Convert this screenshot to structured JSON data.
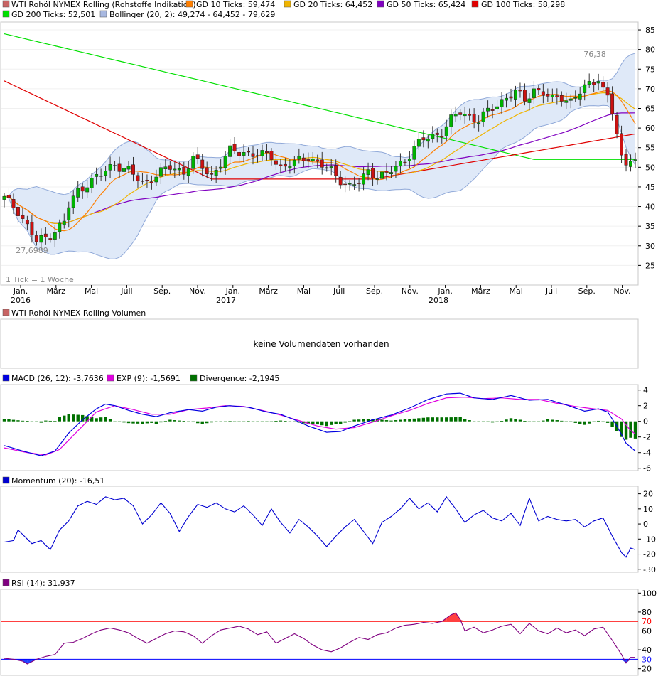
{
  "colors": {
    "bullish": "#00b400",
    "bearish": "#cc1111",
    "gd10": "#ff7f00",
    "gd20": "#f0b400",
    "gd50": "#8000c0",
    "gd100": "#e00000",
    "gd200": "#00e000",
    "bollinger_fill": "#dfe9f8",
    "bollinger_line": "#8fa8d8",
    "macd": "#0000e0",
    "signal": "#e000e0",
    "divergence": "#007000",
    "momentum": "#0000d0",
    "rsi": "#800080",
    "rsi70": "#ff0000",
    "rsi30": "#0000ff",
    "rsi_fill_hi": "#ff4040",
    "rsi_fill_lo": "#2040ff"
  },
  "price_panel": {
    "legend": [
      {
        "label": "WTI Rohöl NYMEX Rolling (Rohstoffe Indikation)",
        "color": "#c86464"
      },
      {
        "label": "GD 10 Ticks: 59,474",
        "color": "#ff7f00"
      },
      {
        "label": "GD 20 Ticks: 64,452",
        "color": "#f0b400"
      },
      {
        "label": "GD 50 Ticks: 65,424",
        "color": "#8000c0"
      },
      {
        "label": "GD 100 Ticks: 58,298",
        "color": "#e00000"
      },
      {
        "label": "GD 200 Ticks: 52,501",
        "color": "#00e000"
      },
      {
        "label": "Bollinger (20, 2): 49,274 - 64,452 - 79,629",
        "color": "#a8b8e0"
      }
    ],
    "max_label": "76,38",
    "min_label": "27,6989",
    "tick_note": "1 Tick = 1 Woche",
    "y_ticks": [
      "85",
      "80",
      "75",
      "70",
      "65",
      "60",
      "55",
      "50",
      "45",
      "40",
      "35",
      "30",
      "25"
    ],
    "x_months": [
      "Jan.",
      "März",
      "Mai",
      "Juli",
      "Sep.",
      "Nov.",
      "Jan.",
      "März",
      "Mai",
      "Juli",
      "Sep.",
      "Nov.",
      "Jan.",
      "März",
      "Mai",
      "Juli",
      "Sep.",
      "Nov."
    ],
    "x_years": [
      "2016",
      "2017",
      "2018"
    ]
  },
  "volume_panel": {
    "legend": "WTI Rohöl NYMEX Rolling Volumen",
    "message": "keine Volumendaten vorhanden"
  },
  "macd_panel": {
    "legend": [
      {
        "label": "MACD (26, 12): -3,7636",
        "color": "#0000e0"
      },
      {
        "label": "EXP (9): -1,5691",
        "color": "#e000e0"
      },
      {
        "label": "Divergence: -2,1945",
        "color": "#007000"
      }
    ],
    "y_ticks": [
      "4",
      "2",
      "0",
      "-2",
      "-4",
      "-6"
    ]
  },
  "momentum_panel": {
    "legend": [
      {
        "label": "Momentum (20): -16,51",
        "color": "#0000d0"
      }
    ],
    "y_ticks": [
      "20",
      "10",
      "0",
      "-10",
      "-20",
      "-30"
    ]
  },
  "rsi_panel": {
    "legend": [
      {
        "label": "RSI (14): 31,937",
        "color": "#800080"
      }
    ],
    "y_ticks": [
      "100",
      "80",
      "60",
      "40",
      "20"
    ],
    "ref_labels": [
      "70",
      "30"
    ]
  },
  "chart_data": {
    "type": "candlestick",
    "ylim": [
      20,
      87
    ],
    "price_anchors": [
      [
        0,
        42
      ],
      [
        3,
        39
      ],
      [
        5,
        35
      ],
      [
        7,
        31
      ],
      [
        9,
        32
      ],
      [
        11,
        34
      ],
      [
        13,
        36
      ],
      [
        14,
        40
      ],
      [
        16,
        44
      ],
      [
        18,
        46
      ],
      [
        21,
        48
      ],
      [
        24,
        51
      ],
      [
        27,
        49
      ],
      [
        30,
        46
      ],
      [
        33,
        48
      ],
      [
        36,
        50
      ],
      [
        39,
        49
      ],
      [
        41,
        52
      ],
      [
        43,
        50
      ],
      [
        45,
        48
      ],
      [
        47,
        51
      ],
      [
        49,
        54
      ],
      [
        52,
        54
      ],
      [
        55,
        53
      ],
      [
        58,
        53
      ],
      [
        60,
        50
      ],
      [
        63,
        51
      ],
      [
        66,
        53
      ],
      [
        68,
        51
      ],
      [
        71,
        49
      ],
      [
        73,
        47
      ],
      [
        75,
        45
      ],
      [
        77,
        46
      ],
      [
        79,
        49
      ],
      [
        81,
        48
      ],
      [
        83,
        48
      ],
      [
        85,
        50
      ],
      [
        87,
        52
      ],
      [
        89,
        55
      ],
      [
        91,
        57
      ],
      [
        93,
        58
      ],
      [
        95,
        59
      ],
      [
        97,
        62
      ],
      [
        99,
        64
      ],
      [
        101,
        63
      ],
      [
        103,
        62
      ],
      [
        105,
        64
      ],
      [
        107,
        66
      ],
      [
        109,
        68
      ],
      [
        111,
        69
      ],
      [
        113,
        67
      ],
      [
        115,
        70
      ],
      [
        117,
        69
      ],
      [
        119,
        67
      ],
      [
        121,
        68
      ],
      [
        123,
        67
      ],
      [
        125,
        69
      ],
      [
        127,
        71
      ],
      [
        129,
        73
      ],
      [
        130,
        70
      ],
      [
        131,
        68
      ],
      [
        132,
        64
      ],
      [
        133,
        58
      ],
      [
        134,
        52
      ],
      [
        135,
        51
      ],
      [
        136,
        53
      ],
      [
        137,
        52
      ]
    ],
    "macd_anchors": [
      [
        0,
        -3.1
      ],
      [
        4,
        -3.8
      ],
      [
        8,
        -4.4
      ],
      [
        11,
        -3.8
      ],
      [
        14,
        -1.5
      ],
      [
        17,
        0.2
      ],
      [
        20,
        1.6
      ],
      [
        22,
        2.2
      ],
      [
        24,
        2.0
      ],
      [
        27,
        1.4
      ],
      [
        30,
        0.9
      ],
      [
        33,
        0.6
      ],
      [
        36,
        1.1
      ],
      [
        40,
        1.5
      ],
      [
        43,
        1.3
      ],
      [
        46,
        1.8
      ],
      [
        49,
        2.0
      ],
      [
        53,
        1.8
      ],
      [
        57,
        1.2
      ],
      [
        60,
        0.9
      ],
      [
        63,
        0.2
      ],
      [
        66,
        -0.6
      ],
      [
        70,
        -1.4
      ],
      [
        73,
        -1.3
      ],
      [
        76,
        -0.6
      ],
      [
        80,
        0.2
      ],
      [
        84,
        0.8
      ],
      [
        88,
        1.7
      ],
      [
        92,
        2.8
      ],
      [
        96,
        3.5
      ],
      [
        99,
        3.6
      ],
      [
        102,
        3.0
      ],
      [
        106,
        2.8
      ],
      [
        110,
        3.3
      ],
      [
        114,
        2.7
      ],
      [
        118,
        2.8
      ],
      [
        122,
        2.1
      ],
      [
        126,
        1.3
      ],
      [
        129,
        1.6
      ],
      [
        131,
        1.2
      ],
      [
        133,
        -0.6
      ],
      [
        135,
        -2.8
      ],
      [
        137,
        -3.8
      ]
    ],
    "signal_anchors": [
      [
        0,
        -3.4
      ],
      [
        5,
        -4.0
      ],
      [
        9,
        -4.3
      ],
      [
        12,
        -3.6
      ],
      [
        16,
        -1.2
      ],
      [
        20,
        1.2
      ],
      [
        24,
        2.0
      ],
      [
        28,
        1.5
      ],
      [
        32,
        0.9
      ],
      [
        36,
        0.9
      ],
      [
        40,
        1.5
      ],
      [
        44,
        1.7
      ],
      [
        48,
        2.0
      ],
      [
        52,
        1.9
      ],
      [
        56,
        1.4
      ],
      [
        60,
        0.8
      ],
      [
        64,
        0.1
      ],
      [
        68,
        -0.6
      ],
      [
        72,
        -1.0
      ],
      [
        76,
        -0.8
      ],
      [
        80,
        -0.1
      ],
      [
        84,
        0.7
      ],
      [
        88,
        1.4
      ],
      [
        92,
        2.3
      ],
      [
        96,
        3.0
      ],
      [
        100,
        3.1
      ],
      [
        104,
        2.9
      ],
      [
        108,
        3.0
      ],
      [
        112,
        2.8
      ],
      [
        116,
        2.8
      ],
      [
        120,
        2.3
      ],
      [
        124,
        1.9
      ],
      [
        128,
        1.6
      ],
      [
        131,
        1.4
      ],
      [
        134,
        0.3
      ],
      [
        136,
        -1.2
      ],
      [
        137,
        -1.6
      ]
    ],
    "momentum_anchors": [
      [
        0,
        -12
      ],
      [
        2,
        -11
      ],
      [
        3,
        -4
      ],
      [
        5,
        -10
      ],
      [
        6,
        -13
      ],
      [
        8,
        -11
      ],
      [
        10,
        -17
      ],
      [
        12,
        -4
      ],
      [
        14,
        2
      ],
      [
        16,
        12
      ],
      [
        18,
        15
      ],
      [
        20,
        13
      ],
      [
        22,
        18
      ],
      [
        24,
        16
      ],
      [
        26,
        17
      ],
      [
        28,
        12
      ],
      [
        30,
        0
      ],
      [
        32,
        6
      ],
      [
        34,
        14
      ],
      [
        36,
        7
      ],
      [
        38,
        -5
      ],
      [
        40,
        5
      ],
      [
        42,
        13
      ],
      [
        44,
        11
      ],
      [
        46,
        14
      ],
      [
        48,
        10
      ],
      [
        50,
        8
      ],
      [
        52,
        12
      ],
      [
        54,
        6
      ],
      [
        56,
        -1
      ],
      [
        58,
        10
      ],
      [
        60,
        1
      ],
      [
        62,
        -6
      ],
      [
        64,
        3
      ],
      [
        66,
        -2
      ],
      [
        68,
        -8
      ],
      [
        70,
        -15
      ],
      [
        72,
        -8
      ],
      [
        74,
        -2
      ],
      [
        76,
        3
      ],
      [
        78,
        -5
      ],
      [
        80,
        -13
      ],
      [
        82,
        1
      ],
      [
        84,
        5
      ],
      [
        86,
        10
      ],
      [
        88,
        17
      ],
      [
        90,
        10
      ],
      [
        92,
        14
      ],
      [
        94,
        8
      ],
      [
        96,
        18
      ],
      [
        98,
        10
      ],
      [
        100,
        1
      ],
      [
        102,
        6
      ],
      [
        104,
        9
      ],
      [
        106,
        4
      ],
      [
        108,
        2
      ],
      [
        110,
        7
      ],
      [
        112,
        -1
      ],
      [
        114,
        17
      ],
      [
        116,
        2
      ],
      [
        118,
        5
      ],
      [
        120,
        3
      ],
      [
        122,
        2
      ],
      [
        124,
        3
      ],
      [
        126,
        -2
      ],
      [
        128,
        2
      ],
      [
        130,
        4
      ],
      [
        132,
        -8
      ],
      [
        134,
        -19
      ],
      [
        135,
        -22
      ],
      [
        136,
        -16
      ],
      [
        137,
        -17
      ]
    ],
    "rsi_anchors": [
      [
        0,
        31
      ],
      [
        2,
        30
      ],
      [
        4,
        28
      ],
      [
        5,
        25
      ],
      [
        7,
        30
      ],
      [
        9,
        33
      ],
      [
        11,
        35
      ],
      [
        13,
        47
      ],
      [
        15,
        48
      ],
      [
        17,
        52
      ],
      [
        19,
        57
      ],
      [
        21,
        61
      ],
      [
        23,
        63
      ],
      [
        25,
        61
      ],
      [
        27,
        58
      ],
      [
        29,
        52
      ],
      [
        31,
        47
      ],
      [
        33,
        52
      ],
      [
        35,
        57
      ],
      [
        37,
        60
      ],
      [
        39,
        59
      ],
      [
        41,
        55
      ],
      [
        43,
        47
      ],
      [
        45,
        55
      ],
      [
        47,
        61
      ],
      [
        49,
        63
      ],
      [
        51,
        65
      ],
      [
        53,
        62
      ],
      [
        55,
        56
      ],
      [
        57,
        59
      ],
      [
        59,
        47
      ],
      [
        61,
        52
      ],
      [
        63,
        57
      ],
      [
        65,
        52
      ],
      [
        67,
        45
      ],
      [
        69,
        40
      ],
      [
        71,
        38
      ],
      [
        73,
        42
      ],
      [
        75,
        48
      ],
      [
        77,
        53
      ],
      [
        79,
        51
      ],
      [
        81,
        56
      ],
      [
        83,
        58
      ],
      [
        85,
        63
      ],
      [
        87,
        66
      ],
      [
        89,
        67
      ],
      [
        91,
        69
      ],
      [
        93,
        68
      ],
      [
        95,
        70
      ],
      [
        97,
        77
      ],
      [
        98,
        79
      ],
      [
        99,
        72
      ],
      [
        100,
        60
      ],
      [
        102,
        64
      ],
      [
        104,
        58
      ],
      [
        106,
        61
      ],
      [
        108,
        65
      ],
      [
        110,
        67
      ],
      [
        112,
        57
      ],
      [
        114,
        68
      ],
      [
        116,
        60
      ],
      [
        118,
        57
      ],
      [
        120,
        63
      ],
      [
        122,
        58
      ],
      [
        124,
        61
      ],
      [
        126,
        55
      ],
      [
        128,
        62
      ],
      [
        130,
        64
      ],
      [
        132,
        50
      ],
      [
        134,
        35
      ],
      [
        135,
        26
      ],
      [
        136,
        32
      ],
      [
        137,
        32
      ]
    ],
    "rsi_levels": [
      70,
      30
    ]
  }
}
